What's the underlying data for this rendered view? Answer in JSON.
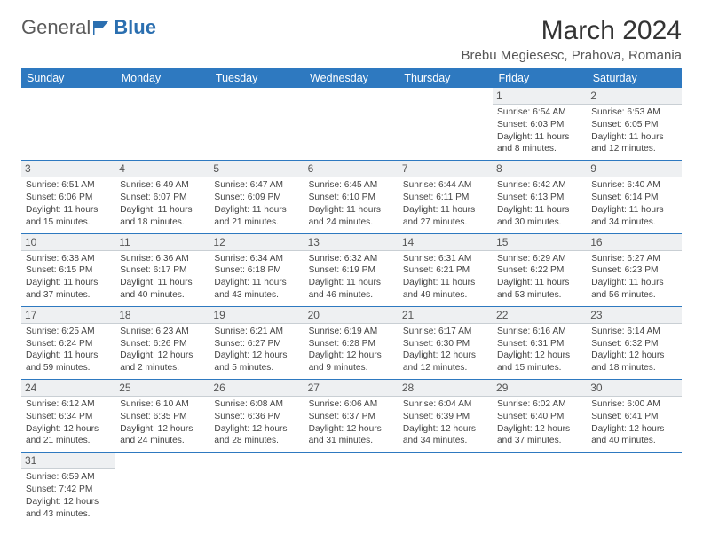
{
  "logo": {
    "part1": "General",
    "part2": "Blue"
  },
  "title": "March 2024",
  "location": "Brebu Megiesesc, Prahova, Romania",
  "weekdays": [
    "Sunday",
    "Monday",
    "Tuesday",
    "Wednesday",
    "Thursday",
    "Friday",
    "Saturday"
  ],
  "colors": {
    "header_bg": "#2e79c0",
    "header_text": "#ffffff",
    "daynum_bg": "#eef0f2",
    "border": "#2e79c0",
    "logo_blue": "#2b6fb0"
  },
  "rows": [
    [
      null,
      null,
      null,
      null,
      null,
      {
        "d": "1",
        "sr": "Sunrise: 6:54 AM",
        "ss": "Sunset: 6:03 PM",
        "dl1": "Daylight: 11 hours",
        "dl2": "and 8 minutes."
      },
      {
        "d": "2",
        "sr": "Sunrise: 6:53 AM",
        "ss": "Sunset: 6:05 PM",
        "dl1": "Daylight: 11 hours",
        "dl2": "and 12 minutes."
      }
    ],
    [
      {
        "d": "3",
        "sr": "Sunrise: 6:51 AM",
        "ss": "Sunset: 6:06 PM",
        "dl1": "Daylight: 11 hours",
        "dl2": "and 15 minutes."
      },
      {
        "d": "4",
        "sr": "Sunrise: 6:49 AM",
        "ss": "Sunset: 6:07 PM",
        "dl1": "Daylight: 11 hours",
        "dl2": "and 18 minutes."
      },
      {
        "d": "5",
        "sr": "Sunrise: 6:47 AM",
        "ss": "Sunset: 6:09 PM",
        "dl1": "Daylight: 11 hours",
        "dl2": "and 21 minutes."
      },
      {
        "d": "6",
        "sr": "Sunrise: 6:45 AM",
        "ss": "Sunset: 6:10 PM",
        "dl1": "Daylight: 11 hours",
        "dl2": "and 24 minutes."
      },
      {
        "d": "7",
        "sr": "Sunrise: 6:44 AM",
        "ss": "Sunset: 6:11 PM",
        "dl1": "Daylight: 11 hours",
        "dl2": "and 27 minutes."
      },
      {
        "d": "8",
        "sr": "Sunrise: 6:42 AM",
        "ss": "Sunset: 6:13 PM",
        "dl1": "Daylight: 11 hours",
        "dl2": "and 30 minutes."
      },
      {
        "d": "9",
        "sr": "Sunrise: 6:40 AM",
        "ss": "Sunset: 6:14 PM",
        "dl1": "Daylight: 11 hours",
        "dl2": "and 34 minutes."
      }
    ],
    [
      {
        "d": "10",
        "sr": "Sunrise: 6:38 AM",
        "ss": "Sunset: 6:15 PM",
        "dl1": "Daylight: 11 hours",
        "dl2": "and 37 minutes."
      },
      {
        "d": "11",
        "sr": "Sunrise: 6:36 AM",
        "ss": "Sunset: 6:17 PM",
        "dl1": "Daylight: 11 hours",
        "dl2": "and 40 minutes."
      },
      {
        "d": "12",
        "sr": "Sunrise: 6:34 AM",
        "ss": "Sunset: 6:18 PM",
        "dl1": "Daylight: 11 hours",
        "dl2": "and 43 minutes."
      },
      {
        "d": "13",
        "sr": "Sunrise: 6:32 AM",
        "ss": "Sunset: 6:19 PM",
        "dl1": "Daylight: 11 hours",
        "dl2": "and 46 minutes."
      },
      {
        "d": "14",
        "sr": "Sunrise: 6:31 AM",
        "ss": "Sunset: 6:21 PM",
        "dl1": "Daylight: 11 hours",
        "dl2": "and 49 minutes."
      },
      {
        "d": "15",
        "sr": "Sunrise: 6:29 AM",
        "ss": "Sunset: 6:22 PM",
        "dl1": "Daylight: 11 hours",
        "dl2": "and 53 minutes."
      },
      {
        "d": "16",
        "sr": "Sunrise: 6:27 AM",
        "ss": "Sunset: 6:23 PM",
        "dl1": "Daylight: 11 hours",
        "dl2": "and 56 minutes."
      }
    ],
    [
      {
        "d": "17",
        "sr": "Sunrise: 6:25 AM",
        "ss": "Sunset: 6:24 PM",
        "dl1": "Daylight: 11 hours",
        "dl2": "and 59 minutes."
      },
      {
        "d": "18",
        "sr": "Sunrise: 6:23 AM",
        "ss": "Sunset: 6:26 PM",
        "dl1": "Daylight: 12 hours",
        "dl2": "and 2 minutes."
      },
      {
        "d": "19",
        "sr": "Sunrise: 6:21 AM",
        "ss": "Sunset: 6:27 PM",
        "dl1": "Daylight: 12 hours",
        "dl2": "and 5 minutes."
      },
      {
        "d": "20",
        "sr": "Sunrise: 6:19 AM",
        "ss": "Sunset: 6:28 PM",
        "dl1": "Daylight: 12 hours",
        "dl2": "and 9 minutes."
      },
      {
        "d": "21",
        "sr": "Sunrise: 6:17 AM",
        "ss": "Sunset: 6:30 PM",
        "dl1": "Daylight: 12 hours",
        "dl2": "and 12 minutes."
      },
      {
        "d": "22",
        "sr": "Sunrise: 6:16 AM",
        "ss": "Sunset: 6:31 PM",
        "dl1": "Daylight: 12 hours",
        "dl2": "and 15 minutes."
      },
      {
        "d": "23",
        "sr": "Sunrise: 6:14 AM",
        "ss": "Sunset: 6:32 PM",
        "dl1": "Daylight: 12 hours",
        "dl2": "and 18 minutes."
      }
    ],
    [
      {
        "d": "24",
        "sr": "Sunrise: 6:12 AM",
        "ss": "Sunset: 6:34 PM",
        "dl1": "Daylight: 12 hours",
        "dl2": "and 21 minutes."
      },
      {
        "d": "25",
        "sr": "Sunrise: 6:10 AM",
        "ss": "Sunset: 6:35 PM",
        "dl1": "Daylight: 12 hours",
        "dl2": "and 24 minutes."
      },
      {
        "d": "26",
        "sr": "Sunrise: 6:08 AM",
        "ss": "Sunset: 6:36 PM",
        "dl1": "Daylight: 12 hours",
        "dl2": "and 28 minutes."
      },
      {
        "d": "27",
        "sr": "Sunrise: 6:06 AM",
        "ss": "Sunset: 6:37 PM",
        "dl1": "Daylight: 12 hours",
        "dl2": "and 31 minutes."
      },
      {
        "d": "28",
        "sr": "Sunrise: 6:04 AM",
        "ss": "Sunset: 6:39 PM",
        "dl1": "Daylight: 12 hours",
        "dl2": "and 34 minutes."
      },
      {
        "d": "29",
        "sr": "Sunrise: 6:02 AM",
        "ss": "Sunset: 6:40 PM",
        "dl1": "Daylight: 12 hours",
        "dl2": "and 37 minutes."
      },
      {
        "d": "30",
        "sr": "Sunrise: 6:00 AM",
        "ss": "Sunset: 6:41 PM",
        "dl1": "Daylight: 12 hours",
        "dl2": "and 40 minutes."
      }
    ],
    [
      {
        "d": "31",
        "sr": "Sunrise: 6:59 AM",
        "ss": "Sunset: 7:42 PM",
        "dl1": "Daylight: 12 hours",
        "dl2": "and 43 minutes."
      },
      null,
      null,
      null,
      null,
      null,
      null
    ]
  ]
}
